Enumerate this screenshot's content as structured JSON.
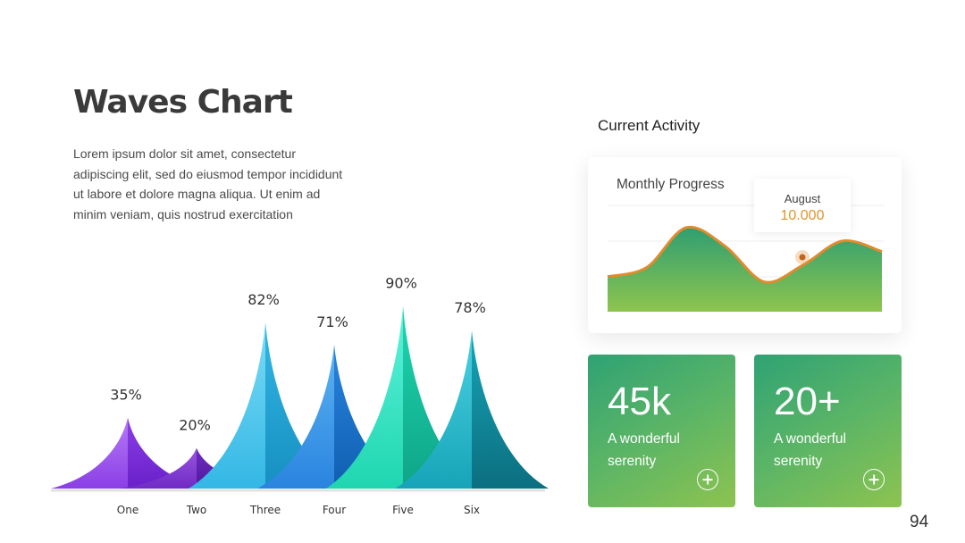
{
  "slide": {
    "title": "Waves Chart",
    "description": "Lorem ipsum dolor sit amet, consectetur adipiscing elit, sed do eiusmod tempor incididunt ut labore et dolore magna aliqua. Ut enim ad minim veniam, quis nostrud exercitation",
    "page_number": "94"
  },
  "chart_data": [
    {
      "type": "area",
      "title": "",
      "categories": [
        "One",
        "Two",
        "Three",
        "Four",
        "Five",
        "Six"
      ],
      "values": [
        35,
        20,
        82,
        71,
        90,
        78
      ],
      "value_labels": [
        "35%",
        "20%",
        "82%",
        "71%",
        "90%",
        "78%"
      ],
      "ylim": [
        0,
        100
      ],
      "grid": false,
      "colors": [
        [
          "#b77bf5",
          "#8a3fe6",
          "#6a20c9"
        ],
        [
          "#9a55e0",
          "#6f2bc4",
          "#4e1a9a"
        ],
        [
          "#7ddcf5",
          "#33b7e5",
          "#168fc0"
        ],
        [
          "#5db4f2",
          "#2a84df",
          "#0f5fb0"
        ],
        [
          "#5ff3dc",
          "#1fd6b0",
          "#0ea587"
        ],
        [
          "#4bd3e3",
          "#17a4b8",
          "#0b6f80"
        ]
      ]
    },
    {
      "type": "area",
      "title": "Monthly Progress",
      "series": [
        {
          "values": [
            22,
            36,
            96,
            68,
            14,
            40,
            76,
            60
          ]
        }
      ],
      "highlight": {
        "month": "August",
        "value": "10.000"
      },
      "grid": true,
      "colors": {
        "fill_top": "#2f9e72",
        "fill_bottom": "#8dc44e",
        "line": "#e08b2e"
      }
    }
  ],
  "activity": {
    "title": "Current Activity",
    "cards": [
      {
        "value": "45k",
        "label": "A wonderful serenity"
      },
      {
        "value": "20+",
        "label": "A wonderful serenity"
      }
    ]
  }
}
